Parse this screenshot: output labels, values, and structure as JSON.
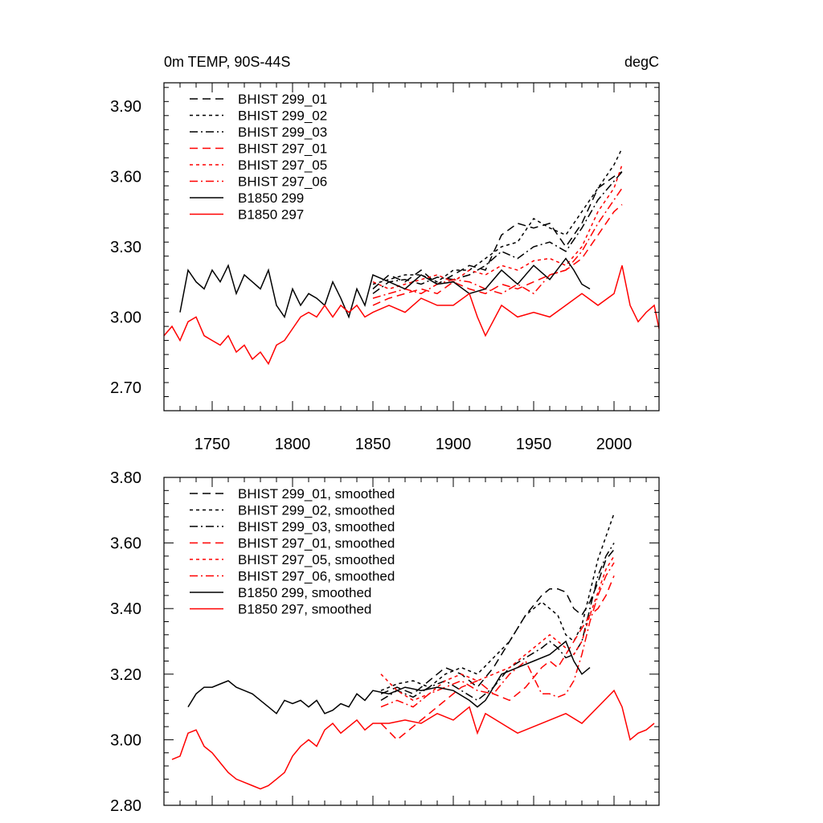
{
  "chart_data": [
    {
      "type": "line",
      "title_left": "0m TEMP, 90S-44S",
      "title_right": "degC",
      "xlim": [
        1720,
        2028
      ],
      "ylim": [
        2.6,
        4.0
      ],
      "yticks": [
        2.7,
        3.0,
        3.3,
        3.6,
        3.9
      ],
      "ytick_labels": [
        "2.70",
        "3.00",
        "3.30",
        "3.60",
        "3.90"
      ],
      "xticks": [
        1750,
        1800,
        1850,
        1900,
        1950,
        2000
      ],
      "xtick_labels": [
        "1750",
        "1800",
        "1850",
        "1900",
        "1950",
        "2000"
      ],
      "legend": "top-left",
      "series": [
        {
          "name": "BHIST 299_01",
          "color": "#000000",
          "dash": "dashed",
          "x": [
            1850,
            1860,
            1870,
            1880,
            1890,
            1900,
            1910,
            1920,
            1930,
            1940,
            1950,
            1960,
            1970,
            1980,
            1990,
            2000,
            2005
          ],
          "y": [
            3.12,
            3.18,
            3.15,
            3.2,
            3.14,
            3.18,
            3.22,
            3.2,
            3.35,
            3.4,
            3.38,
            3.4,
            3.3,
            3.4,
            3.55,
            3.6,
            3.62
          ]
        },
        {
          "name": "BHIST 299_02",
          "color": "#000000",
          "dash": "dotted",
          "x": [
            1850,
            1860,
            1870,
            1880,
            1890,
            1900,
            1910,
            1920,
            1930,
            1940,
            1950,
            1960,
            1970,
            1980,
            1990,
            2000,
            2005
          ],
          "y": [
            3.14,
            3.16,
            3.18,
            3.18,
            3.15,
            3.2,
            3.2,
            3.25,
            3.3,
            3.32,
            3.42,
            3.38,
            3.35,
            3.45,
            3.55,
            3.65,
            3.72
          ]
        },
        {
          "name": "BHIST 299_03",
          "color": "#000000",
          "dash": "dashdot",
          "x": [
            1850,
            1860,
            1870,
            1880,
            1890,
            1900,
            1910,
            1920,
            1930,
            1940,
            1950,
            1960,
            1970,
            1980,
            1990,
            2000,
            2005
          ],
          "y": [
            3.1,
            3.15,
            3.16,
            3.14,
            3.17,
            3.16,
            3.18,
            3.22,
            3.28,
            3.25,
            3.3,
            3.32,
            3.28,
            3.38,
            3.5,
            3.58,
            3.62
          ]
        },
        {
          "name": "BHIST 297_01",
          "color": "#ff0000",
          "dash": "dashed",
          "x": [
            1850,
            1860,
            1870,
            1880,
            1890,
            1900,
            1910,
            1920,
            1930,
            1940,
            1950,
            1960,
            1970,
            1980,
            1990,
            2000,
            2005
          ],
          "y": [
            3.05,
            3.08,
            3.1,
            3.12,
            3.1,
            3.15,
            3.12,
            3.1,
            3.14,
            3.12,
            3.15,
            3.18,
            3.2,
            3.25,
            3.35,
            3.45,
            3.48
          ]
        },
        {
          "name": "BHIST 297_05",
          "color": "#ff0000",
          "dash": "dotted",
          "x": [
            1850,
            1860,
            1870,
            1880,
            1890,
            1900,
            1910,
            1920,
            1930,
            1940,
            1950,
            1960,
            1970,
            1980,
            1990,
            2000,
            2005
          ],
          "y": [
            3.15,
            3.12,
            3.14,
            3.16,
            3.18,
            3.15,
            3.2,
            3.18,
            3.22,
            3.2,
            3.24,
            3.25,
            3.22,
            3.3,
            3.45,
            3.55,
            3.65
          ]
        },
        {
          "name": "BHIST 297_06",
          "color": "#ff0000",
          "dash": "dashdot",
          "x": [
            1850,
            1860,
            1870,
            1880,
            1890,
            1900,
            1910,
            1920,
            1930,
            1940,
            1950,
            1960,
            1970,
            1980,
            1990,
            2000,
            2005
          ],
          "y": [
            3.08,
            3.1,
            3.12,
            3.1,
            3.14,
            3.16,
            3.15,
            3.12,
            3.1,
            3.14,
            3.1,
            3.18,
            3.2,
            3.28,
            3.4,
            3.5,
            3.55
          ]
        },
        {
          "name": "B1850 299",
          "color": "#000000",
          "dash": "solid",
          "x": [
            1730,
            1735,
            1740,
            1745,
            1750,
            1755,
            1760,
            1765,
            1770,
            1775,
            1780,
            1785,
            1790,
            1795,
            1800,
            1805,
            1810,
            1815,
            1820,
            1825,
            1830,
            1835,
            1840,
            1845,
            1850,
            1860,
            1870,
            1880,
            1890,
            1900,
            1910,
            1920,
            1930,
            1940,
            1950,
            1960,
            1970,
            1975,
            1980,
            1985
          ],
          "y": [
            3.02,
            3.2,
            3.15,
            3.12,
            3.2,
            3.15,
            3.22,
            3.1,
            3.18,
            3.15,
            3.12,
            3.2,
            3.05,
            3.0,
            3.12,
            3.05,
            3.1,
            3.08,
            3.05,
            3.15,
            3.08,
            3.0,
            3.12,
            3.05,
            3.18,
            3.15,
            3.12,
            3.18,
            3.14,
            3.15,
            3.1,
            3.12,
            3.2,
            3.14,
            3.22,
            3.16,
            3.25,
            3.2,
            3.14,
            3.12
          ]
        },
        {
          "name": "B1850 297",
          "color": "#ff0000",
          "dash": "solid",
          "x": [
            1720,
            1725,
            1730,
            1735,
            1740,
            1745,
            1750,
            1755,
            1760,
            1765,
            1770,
            1775,
            1780,
            1785,
            1790,
            1795,
            1800,
            1805,
            1810,
            1815,
            1820,
            1825,
            1830,
            1835,
            1840,
            1845,
            1850,
            1860,
            1870,
            1880,
            1890,
            1900,
            1910,
            1915,
            1920,
            1930,
            1940,
            1950,
            1960,
            1970,
            1980,
            1990,
            2000,
            2005,
            2010,
            2015,
            2020,
            2025,
            2028
          ],
          "y": [
            2.92,
            2.96,
            2.9,
            2.98,
            3.0,
            2.92,
            2.9,
            2.88,
            2.92,
            2.85,
            2.88,
            2.82,
            2.85,
            2.8,
            2.88,
            2.9,
            2.95,
            3.0,
            3.02,
            3.0,
            3.05,
            3.0,
            3.05,
            3.02,
            3.05,
            3.0,
            3.02,
            3.05,
            3.02,
            3.08,
            3.05,
            3.05,
            3.1,
            3.0,
            2.92,
            3.05,
            3.0,
            3.02,
            3.0,
            3.05,
            3.1,
            3.05,
            3.1,
            3.22,
            3.05,
            2.98,
            3.02,
            3.05,
            2.95
          ]
        }
      ]
    },
    {
      "type": "line",
      "xlim": [
        1720,
        2028
      ],
      "ylim": [
        2.8,
        3.8
      ],
      "yticks": [
        2.8,
        3.0,
        3.2,
        3.4,
        3.6,
        3.8
      ],
      "ytick_labels": [
        "2.80",
        "3.00",
        "3.20",
        "3.40",
        "3.60",
        "3.80"
      ],
      "legend": "top-left",
      "series": [
        {
          "name": "BHIST 299_01, smoothed",
          "color": "#000000",
          "dash": "dashed",
          "x": [
            1855,
            1865,
            1875,
            1885,
            1895,
            1905,
            1915,
            1925,
            1935,
            1945,
            1955,
            1960,
            1965,
            1970,
            1975,
            1980,
            1985,
            1990,
            1995,
            2000
          ],
          "y": [
            3.14,
            3.16,
            3.14,
            3.18,
            3.22,
            3.2,
            3.16,
            3.22,
            3.3,
            3.38,
            3.44,
            3.46,
            3.46,
            3.45,
            3.4,
            3.38,
            3.42,
            3.48,
            3.55,
            3.58
          ]
        },
        {
          "name": "BHIST 299_02, smoothed",
          "color": "#000000",
          "dash": "dotted",
          "x": [
            1855,
            1865,
            1875,
            1885,
            1895,
            1905,
            1915,
            1925,
            1935,
            1945,
            1955,
            1960,
            1965,
            1970,
            1975,
            1980,
            1985,
            1990,
            1995,
            2000
          ],
          "y": [
            3.15,
            3.17,
            3.18,
            3.16,
            3.2,
            3.22,
            3.2,
            3.25,
            3.3,
            3.38,
            3.42,
            3.4,
            3.38,
            3.32,
            3.3,
            3.35,
            3.45,
            3.55,
            3.62,
            3.69
          ]
        },
        {
          "name": "BHIST 299_03, smoothed",
          "color": "#000000",
          "dash": "dashdot",
          "x": [
            1855,
            1865,
            1875,
            1885,
            1895,
            1905,
            1915,
            1925,
            1935,
            1945,
            1955,
            1960,
            1965,
            1970,
            1975,
            1980,
            1985,
            1990,
            1995,
            2000
          ],
          "y": [
            3.12,
            3.15,
            3.13,
            3.16,
            3.18,
            3.15,
            3.12,
            3.16,
            3.22,
            3.25,
            3.28,
            3.3,
            3.28,
            3.25,
            3.26,
            3.3,
            3.4,
            3.5,
            3.56,
            3.6
          ]
        },
        {
          "name": "BHIST 297_01, smoothed",
          "color": "#ff0000",
          "dash": "dashed",
          "x": [
            1855,
            1865,
            1875,
            1885,
            1895,
            1905,
            1915,
            1925,
            1935,
            1945,
            1955,
            1960,
            1965,
            1970,
            1975,
            1980,
            1985,
            1990,
            1995,
            2000
          ],
          "y": [
            3.05,
            3.0,
            3.04,
            3.08,
            3.12,
            3.16,
            3.18,
            3.14,
            3.12,
            3.16,
            3.22,
            3.24,
            3.22,
            3.26,
            3.3,
            3.34,
            3.38,
            3.4,
            3.44,
            3.5
          ]
        },
        {
          "name": "BHIST 297_05, smoothed",
          "color": "#ff0000",
          "dash": "dotted",
          "x": [
            1855,
            1865,
            1875,
            1885,
            1895,
            1905,
            1915,
            1925,
            1935,
            1945,
            1955,
            1960,
            1965,
            1970,
            1975,
            1980,
            1985,
            1990,
            1995,
            2000
          ],
          "y": [
            3.2,
            3.15,
            3.12,
            3.14,
            3.18,
            3.2,
            3.18,
            3.2,
            3.22,
            3.26,
            3.3,
            3.32,
            3.3,
            3.28,
            3.26,
            3.3,
            3.38,
            3.45,
            3.52,
            3.56
          ]
        },
        {
          "name": "BHIST 297_06, smoothed",
          "color": "#ff0000",
          "dash": "dashdot",
          "x": [
            1855,
            1865,
            1875,
            1885,
            1895,
            1905,
            1915,
            1925,
            1935,
            1945,
            1955,
            1960,
            1965,
            1970,
            1975,
            1980,
            1985,
            1990,
            1995,
            2000
          ],
          "y": [
            3.1,
            3.12,
            3.1,
            3.14,
            3.16,
            3.18,
            3.15,
            3.14,
            3.2,
            3.24,
            3.14,
            3.14,
            3.13,
            3.14,
            3.18,
            3.26,
            3.36,
            3.44,
            3.5,
            3.54
          ]
        },
        {
          "name": "B1850 299, smoothed",
          "color": "#000000",
          "dash": "solid",
          "x": [
            1735,
            1740,
            1745,
            1750,
            1755,
            1760,
            1765,
            1770,
            1775,
            1780,
            1785,
            1790,
            1795,
            1800,
            1805,
            1810,
            1815,
            1820,
            1825,
            1830,
            1835,
            1840,
            1845,
            1850,
            1860,
            1870,
            1880,
            1890,
            1900,
            1910,
            1915,
            1920,
            1930,
            1940,
            1950,
            1960,
            1965,
            1970,
            1975,
            1980,
            1985
          ],
          "y": [
            3.1,
            3.14,
            3.16,
            3.16,
            3.17,
            3.18,
            3.16,
            3.15,
            3.14,
            3.12,
            3.1,
            3.08,
            3.12,
            3.11,
            3.12,
            3.1,
            3.12,
            3.08,
            3.09,
            3.11,
            3.1,
            3.14,
            3.12,
            3.15,
            3.14,
            3.16,
            3.15,
            3.16,
            3.15,
            3.12,
            3.1,
            3.12,
            3.2,
            3.22,
            3.24,
            3.26,
            3.28,
            3.3,
            3.24,
            3.2,
            3.22
          ]
        },
        {
          "name": "B1850 297, smoothed",
          "color": "#ff0000",
          "dash": "solid",
          "x": [
            1725,
            1730,
            1735,
            1740,
            1745,
            1750,
            1755,
            1760,
            1765,
            1770,
            1775,
            1780,
            1785,
            1790,
            1795,
            1800,
            1805,
            1810,
            1815,
            1820,
            1825,
            1830,
            1835,
            1840,
            1845,
            1850,
            1860,
            1870,
            1880,
            1890,
            1900,
            1910,
            1915,
            1920,
            1930,
            1940,
            1950,
            1960,
            1970,
            1980,
            1990,
            2000,
            2005,
            2010,
            2015,
            2020,
            2025
          ],
          "y": [
            2.94,
            2.95,
            3.02,
            3.03,
            2.98,
            2.96,
            2.93,
            2.9,
            2.88,
            2.87,
            2.86,
            2.85,
            2.86,
            2.88,
            2.9,
            2.95,
            2.98,
            3.0,
            2.98,
            3.03,
            3.05,
            3.02,
            3.04,
            3.06,
            3.03,
            3.05,
            3.05,
            3.06,
            3.05,
            3.08,
            3.06,
            3.1,
            3.02,
            3.08,
            3.05,
            3.02,
            3.04,
            3.06,
            3.08,
            3.05,
            3.1,
            3.15,
            3.1,
            3.0,
            3.02,
            3.03,
            3.05
          ]
        }
      ]
    }
  ]
}
